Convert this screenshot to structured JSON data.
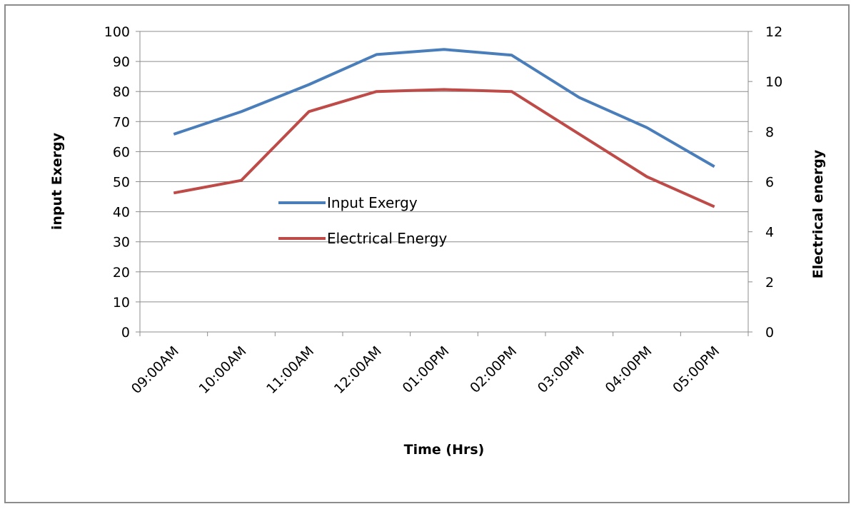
{
  "chart_data": {
    "type": "line",
    "title": "",
    "xlabel": "Time (Hrs)",
    "ylabel": "input Exergy",
    "y2label": "Electrical energy",
    "categories": [
      "09:00AM",
      "10:00AM",
      "11:00AM",
      "12:00AM",
      "01:00PM",
      "02:00PM",
      "03:00PM",
      "04:00PM",
      "05:00PM"
    ],
    "ylim": [
      0,
      100
    ],
    "y2lim": [
      0,
      12
    ],
    "yticks": [
      "0",
      "10",
      "20",
      "30",
      "40",
      "50",
      "60",
      "70",
      "80",
      "90",
      "100"
    ],
    "y2ticks": [
      "0",
      "2",
      "4",
      "6",
      "8",
      "10",
      "12"
    ],
    "grid": true,
    "legend_position": "center-left",
    "series": [
      {
        "name": "Input Exergy",
        "axis": "left",
        "color": "#4a7ebb",
        "values": [
          65.8,
          73.3,
          82.3,
          92.3,
          94.0,
          92.1,
          78.0,
          68.0,
          55.0
        ]
      },
      {
        "name": "Electrical Energy",
        "axis": "right",
        "color": "#be4b48",
        "values": [
          5.55,
          6.05,
          8.8,
          9.6,
          9.68,
          9.6,
          7.9,
          6.2,
          5.0
        ]
      }
    ]
  }
}
